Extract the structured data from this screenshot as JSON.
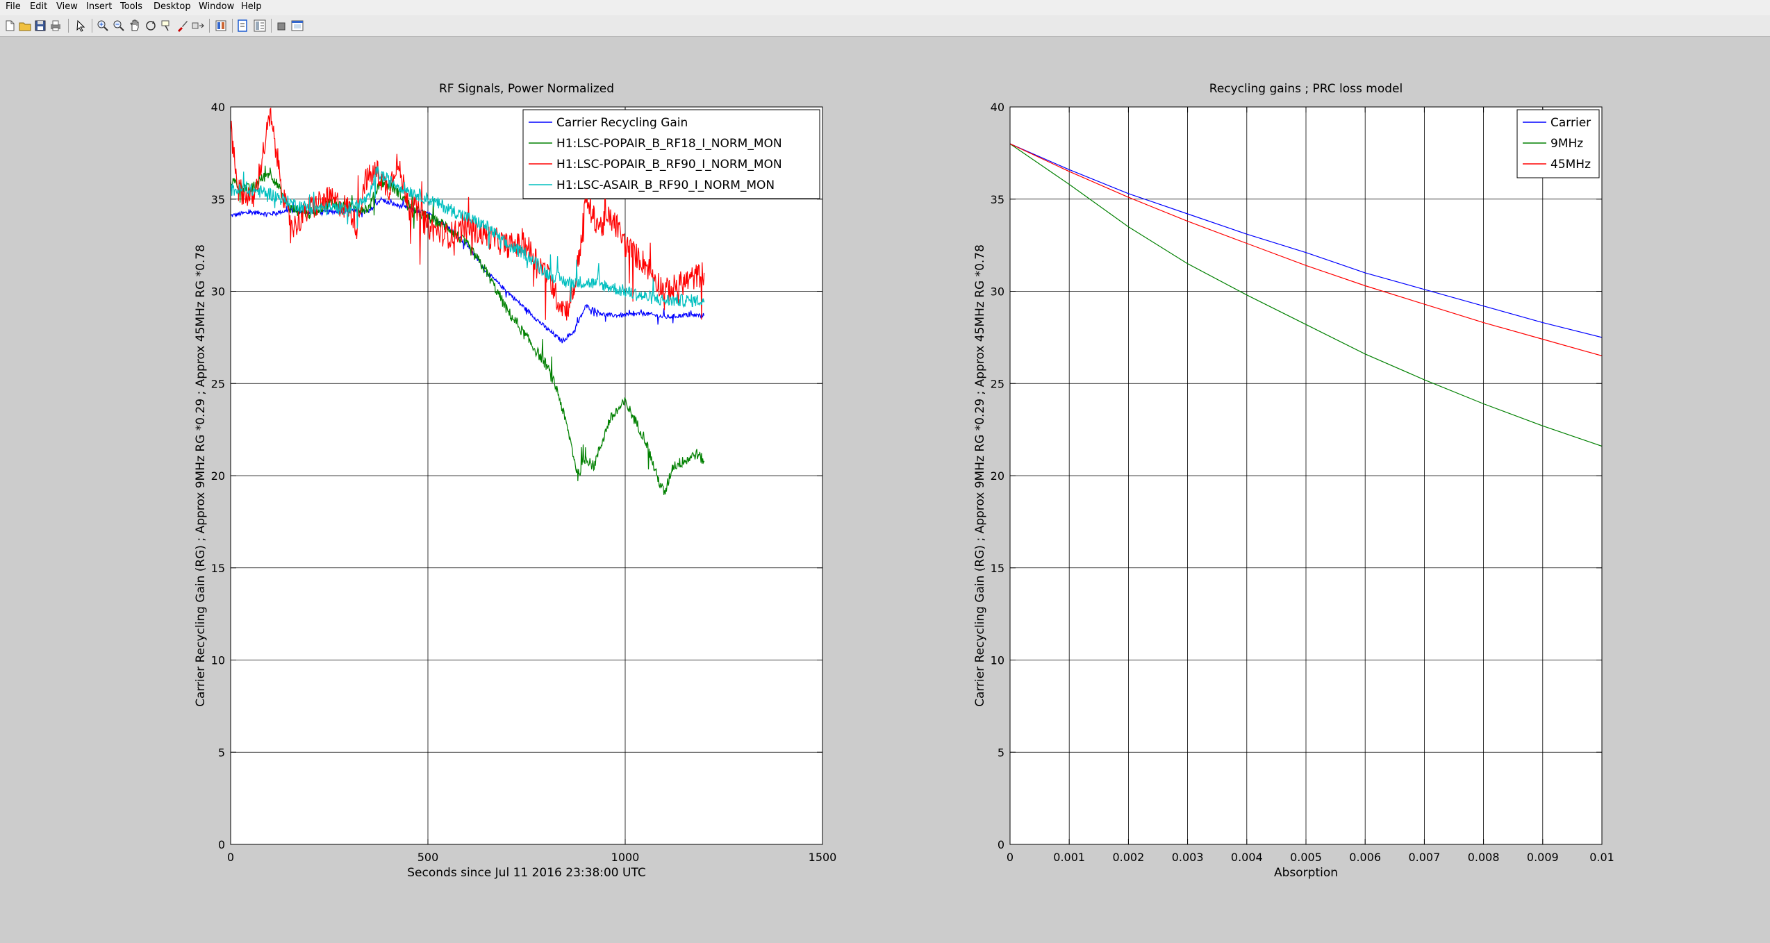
{
  "menu": [
    "File",
    "Edit",
    "View",
    "Insert",
    "Tools",
    "Desktop",
    "Window",
    "Help"
  ],
  "toolbar_icons": [
    "new-figure-icon",
    "open-file-icon",
    "save-icon",
    "print-icon",
    "edit-plot-arrow-icon",
    "zoom-in-icon",
    "zoom-out-icon",
    "pan-hand-icon",
    "rotate-3d-icon",
    "data-cursor-icon",
    "brush-icon",
    "link-plot-icon",
    "insert-colorbar-icon",
    "insert-legend-icon",
    "hide-plot-tools-icon",
    "show-plot-tools-icon"
  ],
  "chart_data": [
    {
      "type": "line",
      "title": "RF Signals, Power Normalized",
      "xlabel": "Seconds since Jul 11 2016 23:38:00 UTC",
      "ylabel": "Carrier Recycling Gain (RG) ; Approx 9MHz RG *0.29 ; Approx 45MHz RG *0.78",
      "xlim": [
        0,
        1500
      ],
      "ylim": [
        0,
        40
      ],
      "xticks": [
        "0",
        "500",
        "1000",
        "1500"
      ],
      "yticks": [
        "0",
        "5",
        "10",
        "15",
        "20",
        "25",
        "30",
        "35",
        "40"
      ],
      "grid": true,
      "legend_position": "top-right",
      "series": [
        {
          "name": "Carrier Recycling Gain",
          "color": "#0000ff",
          "noise": 0.12,
          "x": [
            0,
            50,
            100,
            150,
            200,
            250,
            300,
            350,
            380,
            400,
            450,
            500,
            550,
            600,
            650,
            700,
            750,
            800,
            840,
            870,
            900,
            950,
            1000,
            1050,
            1100,
            1150,
            1200
          ],
          "y": [
            34.1,
            34.3,
            34.2,
            34.4,
            34.3,
            34.3,
            34.4,
            34.3,
            35.0,
            34.8,
            34.5,
            34.2,
            33.5,
            32.5,
            31.0,
            30.0,
            29.0,
            28.0,
            27.3,
            27.8,
            29.2,
            28.7,
            28.7,
            28.8,
            28.6,
            28.7,
            28.7
          ]
        },
        {
          "name": "H1:LSC-POPAIR_B_RF18_I_NORM_MON",
          "color": "#008000",
          "noise": 0.3,
          "x": [
            0,
            50,
            100,
            150,
            200,
            250,
            300,
            350,
            380,
            420,
            460,
            500,
            550,
            600,
            650,
            700,
            750,
            800,
            830,
            860,
            880,
            900,
            920,
            960,
            1000,
            1050,
            1080,
            1100,
            1120,
            1150,
            1180,
            1200
          ],
          "y": [
            36.0,
            35.5,
            36.5,
            34.5,
            34.2,
            34.8,
            34.5,
            34.5,
            36.0,
            35.5,
            34.5,
            34.0,
            33.5,
            32.5,
            31.0,
            29.0,
            27.5,
            26.0,
            24.5,
            22.0,
            20.0,
            21.0,
            20.5,
            23.0,
            24.0,
            22.0,
            20.0,
            19.0,
            20.5,
            20.8,
            21.2,
            20.8
          ]
        },
        {
          "name": "H1:LSC-POPAIR_B_RF90_I_NORM_MON",
          "color": "#ff0000",
          "noise": 0.7,
          "x": [
            0,
            20,
            60,
            100,
            140,
            160,
            200,
            250,
            300,
            320,
            340,
            370,
            400,
            420,
            450,
            500,
            550,
            600,
            650,
            700,
            750,
            800,
            830,
            850,
            870,
            890,
            900,
            920,
            940,
            960,
            980,
            1000,
            1050,
            1100,
            1150,
            1200
          ],
          "y": [
            39.0,
            35.5,
            35.0,
            39.5,
            34.5,
            33.5,
            34.5,
            35.0,
            34.5,
            33.5,
            36.0,
            36.5,
            35.5,
            37.0,
            35.0,
            33.5,
            33.0,
            33.5,
            33.0,
            32.5,
            32.5,
            31.0,
            29.5,
            29.0,
            30.0,
            33.0,
            35.0,
            34.0,
            33.5,
            34.0,
            33.5,
            32.5,
            31.5,
            30.0,
            30.5,
            31.0
          ]
        },
        {
          "name": "H1:LSC-ASAIR_B_RF90_I_NORM_MON",
          "color": "#00bfbf",
          "noise": 0.35,
          "x": [
            0,
            50,
            100,
            150,
            200,
            250,
            300,
            350,
            370,
            400,
            450,
            500,
            550,
            600,
            650,
            700,
            750,
            800,
            850,
            900,
            950,
            1000,
            1050,
            1100,
            1150,
            1200
          ],
          "y": [
            35.5,
            35.5,
            35.3,
            34.8,
            34.5,
            34.5,
            34.5,
            35.0,
            36.5,
            36.0,
            35.5,
            35.0,
            34.5,
            34.0,
            33.5,
            32.5,
            32.0,
            31.0,
            30.5,
            30.5,
            30.3,
            30.0,
            29.7,
            29.5,
            29.5,
            29.5
          ]
        }
      ]
    },
    {
      "type": "line",
      "title": "Recycling gains ; PRC loss model",
      "xlabel": "Absorption",
      "ylabel": "Carrier Recycling Gain (RG) ; Approx 9MHz RG *0.29 ; Approx 45MHz RG *0.78",
      "xlim": [
        0,
        0.01
      ],
      "ylim": [
        0,
        40
      ],
      "xticks": [
        "0",
        "0.001",
        "0.002",
        "0.003",
        "0.004",
        "0.005",
        "0.006",
        "0.007",
        "0.008",
        "0.009",
        "0.01"
      ],
      "yticks": [
        "0",
        "5",
        "10",
        "15",
        "20",
        "25",
        "30",
        "35",
        "40"
      ],
      "grid": true,
      "legend_position": "top-right",
      "series": [
        {
          "name": "Carrier",
          "color": "#0000ff",
          "x": [
            0,
            0.001,
            0.002,
            0.003,
            0.004,
            0.005,
            0.006,
            0.007,
            0.008,
            0.009,
            0.01
          ],
          "y": [
            38.0,
            36.6,
            35.3,
            34.2,
            33.1,
            32.1,
            31.0,
            30.1,
            29.2,
            28.3,
            27.5
          ]
        },
        {
          "name": "9MHz",
          "color": "#008000",
          "x": [
            0,
            0.001,
            0.002,
            0.003,
            0.004,
            0.005,
            0.006,
            0.007,
            0.008,
            0.009,
            0.01
          ],
          "y": [
            38.0,
            35.8,
            33.5,
            31.5,
            29.8,
            28.2,
            26.6,
            25.2,
            23.9,
            22.7,
            21.6
          ]
        },
        {
          "name": "45MHz",
          "color": "#ff0000",
          "x": [
            0,
            0.001,
            0.002,
            0.003,
            0.004,
            0.005,
            0.006,
            0.007,
            0.008,
            0.009,
            0.01
          ],
          "y": [
            38.0,
            36.5,
            35.1,
            33.8,
            32.6,
            31.4,
            30.3,
            29.3,
            28.3,
            27.4,
            26.5
          ]
        }
      ]
    }
  ]
}
